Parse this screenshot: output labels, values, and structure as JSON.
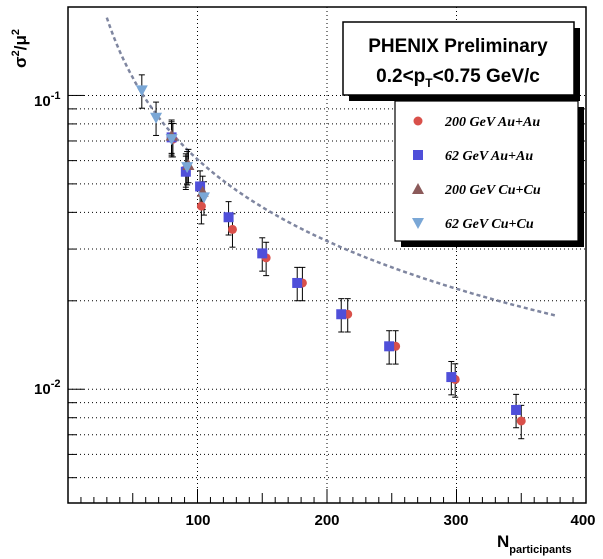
{
  "chart_data": {
    "type": "scatter",
    "title_lines": [
      "PHENIX Preliminary",
      "0.2<p",
      "T",
      "<0.75 GeV/c"
    ],
    "xlabel": "N",
    "xlabel_sub": "participants",
    "ylabel": "σ",
    "ylabel_rest": "/μ",
    "ylabel_sup": "2",
    "xlim": [
      0,
      400
    ],
    "ylim": [
      0.0041,
      0.2
    ],
    "yscale": "log",
    "grid": true,
    "legend_position": "right, below title",
    "x_ticks": [
      "100",
      "200",
      "300",
      "400"
    ],
    "y_ticks": [
      {
        "base": "10",
        "exp": "-1",
        "value": 0.1
      },
      {
        "base": "10",
        "exp": "-2",
        "value": 0.01
      }
    ],
    "series": [
      {
        "name": "200 GeV Au+Au",
        "marker": "circle",
        "color": "#d9504a",
        "points": [
          [
            81,
            0.071
          ],
          [
            91,
            0.056
          ],
          [
            103,
            0.042
          ],
          [
            127,
            0.035
          ],
          [
            153,
            0.028
          ],
          [
            181,
            0.023
          ],
          [
            216,
            0.018
          ],
          [
            253,
            0.014
          ],
          [
            299,
            0.0108
          ],
          [
            350,
            0.0078
          ]
        ]
      },
      {
        "name": "62 GeV Au+Au",
        "marker": "square",
        "color": "#4f4fd9",
        "points": [
          [
            80,
            0.072
          ],
          [
            91,
            0.055
          ],
          [
            102,
            0.049
          ],
          [
            124,
            0.0385
          ],
          [
            150,
            0.029
          ],
          [
            177,
            0.023
          ],
          [
            211,
            0.018
          ],
          [
            248,
            0.014
          ],
          [
            296,
            0.011
          ],
          [
            346,
            0.0085
          ]
        ]
      },
      {
        "name": "200 GeV Cu+Cu",
        "marker": "triangle-up",
        "color": "#8b5a5a",
        "points": [
          [
            80,
            0.073
          ],
          [
            93,
            0.058
          ],
          [
            104,
            0.047
          ]
        ]
      },
      {
        "name": "62 GeV Cu+Cu",
        "marker": "triangle-down",
        "color": "#7aa7d6",
        "points": [
          [
            57,
            0.104
          ],
          [
            68,
            0.084
          ],
          [
            80,
            0.071
          ],
          [
            92,
            0.057
          ],
          [
            105,
            0.045
          ]
        ]
      }
    ],
    "error_rel": 0.13,
    "fit_curve": {
      "color": "#7f86a0",
      "x_range": [
        30,
        378
      ],
      "amplitude": 4.25,
      "exponent": -0.923
    }
  }
}
